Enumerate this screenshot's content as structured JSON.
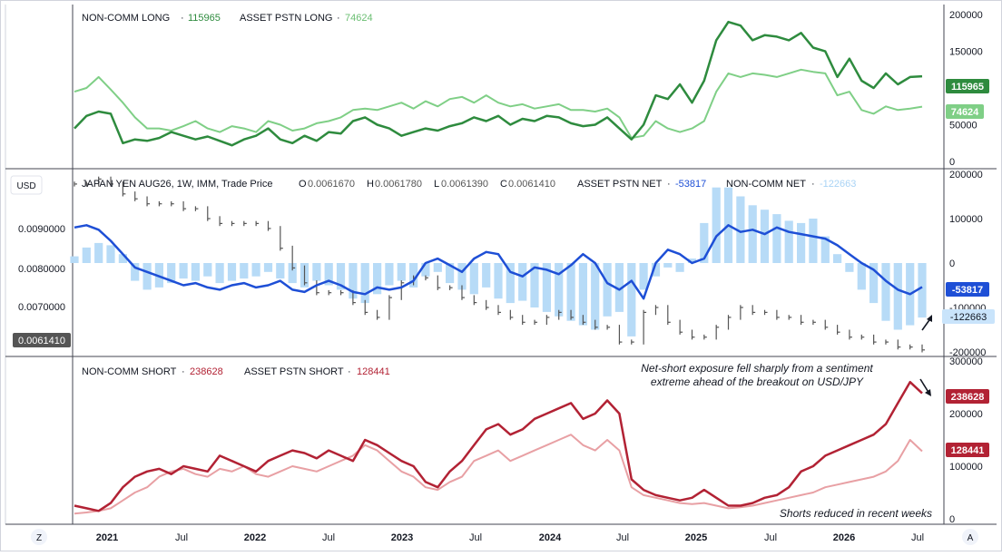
{
  "top_pane": {
    "legend": [
      {
        "label": "NON-COMM LONG",
        "dot": "·",
        "value": "115965",
        "color": "#2e8b3e"
      },
      {
        "label": "ASSET PSTN LONG",
        "dot": "·",
        "value": "74624",
        "color": "#7fcf86"
      }
    ],
    "axis_labels": [
      "200000",
      "150000",
      "100000",
      "50000",
      "0"
    ],
    "badges": [
      {
        "text": "115965",
        "bg": "#2e8b3e",
        "fg": "#ffffff"
      },
      {
        "text": "74624",
        "bg": "#7fcf86",
        "fg": "#ffffff"
      }
    ]
  },
  "mid_pane": {
    "currency_button": "USD",
    "instrument": "JAPAN YEN AUG26, 1W, IMM, Trade Price",
    "ohlc": {
      "o_label": "O",
      "o": "0.0061670",
      "h_label": "H",
      "h": "0.0061780",
      "l_label": "L",
      "l": "0.0061390",
      "c_label": "C",
      "c": "0.0061410"
    },
    "net_legend": [
      {
        "label": "ASSET PSTN NET",
        "dot": "·",
        "value": "-53817",
        "color": "#1e4fd6"
      },
      {
        "label": "NON-COMM NET",
        "dot": "·",
        "value": "-122663",
        "color": "#b7dbf7"
      }
    ],
    "left_axis_labels": [
      "0.0090000",
      "0.0080000",
      "0.0070000"
    ],
    "left_price_badge": "0.0061410",
    "axis_labels": [
      "200000",
      "100000",
      "0",
      "-100000",
      "-200000"
    ],
    "badges": [
      {
        "text": "-53817",
        "bg": "#1e4fd6",
        "fg": "#ffffff"
      },
      {
        "text": "-122663",
        "bg": "#c9e4fb",
        "fg": "#131722"
      }
    ]
  },
  "bottom_pane": {
    "legend": [
      {
        "label": "NON-COMM SHORT",
        "dot": "·",
        "value": "238628",
        "color": "#b22234"
      },
      {
        "label": "ASSET PSTN SHORT",
        "dot": "·",
        "value": "128441",
        "color": "#b22234"
      }
    ],
    "axis_labels": [
      "300000",
      "200000",
      "100000",
      "0"
    ],
    "badges": [
      {
        "text": "238628",
        "bg": "#b22234",
        "fg": "#ffffff"
      },
      {
        "text": "128441",
        "bg": "#b22234",
        "fg": "#ffffff"
      }
    ],
    "annotation_top": [
      "Net-short exposure fell sharply from a sentiment",
      "extreme ahead of the breakout on USD/JPY"
    ],
    "annotation_bottom": "Shorts reduced in recent weeks"
  },
  "time_axis": {
    "labels": [
      "2021",
      "Jul",
      "2022",
      "Jul",
      "2023",
      "Jul",
      "2024",
      "Jul",
      "2025",
      "Jul",
      "2026",
      "Jul"
    ],
    "bold": [
      true,
      false,
      true,
      false,
      true,
      false,
      true,
      false,
      true,
      false,
      true,
      false
    ],
    "left_button": "Z",
    "right_button": "A"
  },
  "colors": {
    "noncomm_long": "#2e8b3e",
    "asset_long": "#7fcf86",
    "asset_net": "#1e4fd6",
    "noncomm_net": "#b7dbf7",
    "noncomm_short": "#b22234",
    "asset_short": "#e8a0a4",
    "price": "#555555"
  },
  "chart_data": [
    {
      "type": "line",
      "ylim": [
        0,
        210000
      ],
      "x": [
        "2020-09",
        "2020-10",
        "2020-11",
        "2020-12",
        "2021-01",
        "2021-02",
        "2021-03",
        "2021-04",
        "2021-05",
        "2021-06",
        "2021-07",
        "2021-08",
        "2021-09",
        "2021-10",
        "2021-11",
        "2021-12",
        "2022-01",
        "2022-02",
        "2022-03",
        "2022-04",
        "2022-05",
        "2022-06",
        "2022-07",
        "2022-08",
        "2022-09",
        "2022-10",
        "2022-11",
        "2022-12",
        "2023-01",
        "2023-02",
        "2023-03",
        "2023-04",
        "2023-05",
        "2023-06",
        "2023-07",
        "2023-08",
        "2023-09",
        "2023-10",
        "2023-11",
        "2023-12",
        "2024-01",
        "2024-02",
        "2024-03",
        "2024-04",
        "2024-05",
        "2024-06",
        "2024-07",
        "2024-08",
        "2024-09",
        "2024-10",
        "2024-11",
        "2024-12",
        "2025-01",
        "2025-02",
        "2025-03",
        "2025-04",
        "2025-05",
        "2025-06",
        "2025-07",
        "2025-08",
        "2025-09",
        "2025-10",
        "2025-11",
        "2025-12",
        "2026-01",
        "2026-02",
        "2026-03",
        "2026-04",
        "2026-05",
        "2026-06",
        "2026-07"
      ],
      "series": [
        {
          "name": "NON-COMM LONG",
          "values": [
            45000,
            62000,
            68000,
            65000,
            25000,
            30000,
            28000,
            32000,
            40000,
            35000,
            30000,
            34000,
            28000,
            22000,
            30000,
            35000,
            45000,
            30000,
            25000,
            35000,
            28000,
            40000,
            38000,
            55000,
            60000,
            50000,
            45000,
            35000,
            40000,
            45000,
            42000,
            48000,
            52000,
            60000,
            55000,
            62000,
            50000,
            58000,
            55000,
            62000,
            60000,
            52000,
            48000,
            50000,
            60000,
            45000,
            30000,
            50000,
            90000,
            85000,
            105000,
            80000,
            110000,
            165000,
            190000,
            185000,
            165000,
            172000,
            170000,
            165000,
            175000,
            155000,
            150000,
            115000,
            140000,
            110000,
            100000,
            120000,
            105000,
            115000,
            115965
          ]
        },
        {
          "name": "ASSET PSTN LONG",
          "values": [
            95000,
            100000,
            115000,
            98000,
            80000,
            60000,
            45000,
            45000,
            42000,
            48000,
            55000,
            45000,
            40000,
            48000,
            45000,
            40000,
            55000,
            50000,
            42000,
            45000,
            52000,
            55000,
            60000,
            70000,
            72000,
            70000,
            75000,
            80000,
            72000,
            82000,
            75000,
            85000,
            88000,
            80000,
            90000,
            80000,
            75000,
            78000,
            72000,
            75000,
            78000,
            70000,
            70000,
            68000,
            72000,
            60000,
            32000,
            35000,
            55000,
            45000,
            40000,
            45000,
            55000,
            95000,
            120000,
            115000,
            120000,
            118000,
            115000,
            120000,
            125000,
            122000,
            120000,
            90000,
            95000,
            70000,
            65000,
            75000,
            70000,
            72000,
            74624
          ]
        }
      ]
    },
    {
      "type": "bar",
      "ylim": [
        -200000,
        200000
      ],
      "x": [
        "2020-09",
        "2020-10",
        "2020-11",
        "2020-12",
        "2021-01",
        "2021-02",
        "2021-03",
        "2021-04",
        "2021-05",
        "2021-06",
        "2021-07",
        "2021-08",
        "2021-09",
        "2021-10",
        "2021-11",
        "2021-12",
        "2022-01",
        "2022-02",
        "2022-03",
        "2022-04",
        "2022-05",
        "2022-06",
        "2022-07",
        "2022-08",
        "2022-09",
        "2022-10",
        "2022-11",
        "2022-12",
        "2023-01",
        "2023-02",
        "2023-03",
        "2023-04",
        "2023-05",
        "2023-06",
        "2023-07",
        "2023-08",
        "2023-09",
        "2023-10",
        "2023-11",
        "2023-12",
        "2024-01",
        "2024-02",
        "2024-03",
        "2024-04",
        "2024-05",
        "2024-06",
        "2024-07",
        "2024-08",
        "2024-09",
        "2024-10",
        "2024-11",
        "2024-12",
        "2025-01",
        "2025-02",
        "2025-03",
        "2025-04",
        "2025-05",
        "2025-06",
        "2025-07",
        "2025-08",
        "2025-09",
        "2025-10",
        "2025-11",
        "2025-12",
        "2026-01",
        "2026-02",
        "2026-03",
        "2026-04",
        "2026-05",
        "2026-06",
        "2026-07"
      ],
      "series": [
        {
          "name": "NON-COMM NET",
          "kind": "bar",
          "values": [
            15000,
            35000,
            45000,
            40000,
            20000,
            -40000,
            -60000,
            -55000,
            -45000,
            -35000,
            -40000,
            -30000,
            -45000,
            -40000,
            -35000,
            -30000,
            -20000,
            -35000,
            -45000,
            -55000,
            -40000,
            -50000,
            -60000,
            -80000,
            -90000,
            -70000,
            -50000,
            -40000,
            -55000,
            -30000,
            -20000,
            -45000,
            -60000,
            -70000,
            -55000,
            -80000,
            -90000,
            -85000,
            -100000,
            -110000,
            -120000,
            -130000,
            -140000,
            -150000,
            -120000,
            -110000,
            -165000,
            -60000,
            -30000,
            -10000,
            -20000,
            10000,
            90000,
            170000,
            170000,
            150000,
            130000,
            120000,
            110000,
            95000,
            90000,
            100000,
            60000,
            20000,
            -20000,
            -60000,
            -90000,
            -130000,
            -150000,
            -140000,
            -122663
          ]
        },
        {
          "name": "ASSET PSTN NET",
          "kind": "line",
          "values": [
            80000,
            85000,
            75000,
            50000,
            20000,
            -10000,
            -20000,
            -30000,
            -40000,
            -50000,
            -45000,
            -55000,
            -60000,
            -50000,
            -45000,
            -55000,
            -50000,
            -40000,
            -60000,
            -65000,
            -50000,
            -40000,
            -50000,
            -65000,
            -70000,
            -55000,
            -60000,
            -55000,
            -40000,
            0,
            10000,
            -5000,
            -20000,
            10000,
            25000,
            20000,
            -20000,
            -30000,
            -10000,
            -15000,
            -25000,
            -5000,
            20000,
            0,
            -45000,
            -60000,
            -40000,
            -80000,
            0,
            30000,
            20000,
            0,
            10000,
            60000,
            85000,
            70000,
            75000,
            65000,
            80000,
            70000,
            65000,
            60000,
            55000,
            40000,
            20000,
            0,
            -15000,
            -40000,
            -60000,
            -70000,
            -53817
          ]
        },
        {
          "name": "JAPAN YEN AUG26, 1W, IMM, Trade Price",
          "kind": "price",
          "unit": "USD",
          "ylim": [
            0.0061,
            0.0097
          ],
          "values": [
            0.0095,
            0.0095,
            0.0096,
            0.0095,
            0.0093,
            0.0092,
            0.0091,
            0.0091,
            0.0091,
            0.009,
            0.009,
            0.0088,
            0.0087,
            0.0087,
            0.0087,
            0.0087,
            0.0086,
            0.0082,
            0.0078,
            0.0075,
            0.0073,
            0.0073,
            0.0073,
            0.0071,
            0.0069,
            0.0068,
            0.0072,
            0.0075,
            0.0076,
            0.0076,
            0.0074,
            0.0074,
            0.0072,
            0.0071,
            0.007,
            0.0069,
            0.0068,
            0.0067,
            0.0067,
            0.0068,
            0.0069,
            0.0068,
            0.0067,
            0.0066,
            0.0066,
            0.0063,
            0.0063,
            0.0069,
            0.007,
            0.0067,
            0.0065,
            0.0064,
            0.0064,
            0.0066,
            0.0068,
            0.007,
            0.0069,
            0.0069,
            0.0068,
            0.0068,
            0.0067,
            0.0067,
            0.0066,
            0.0065,
            0.0064,
            0.0064,
            0.0063,
            0.0063,
            0.0062,
            0.0062,
            0.006141
          ]
        }
      ]
    },
    {
      "type": "line",
      "ylim": [
        0,
        300000
      ],
      "x": [
        "2020-09",
        "2020-10",
        "2020-11",
        "2020-12",
        "2021-01",
        "2021-02",
        "2021-03",
        "2021-04",
        "2021-05",
        "2021-06",
        "2021-07",
        "2021-08",
        "2021-09",
        "2021-10",
        "2021-11",
        "2021-12",
        "2022-01",
        "2022-02",
        "2022-03",
        "2022-04",
        "2022-05",
        "2022-06",
        "2022-07",
        "2022-08",
        "2022-09",
        "2022-10",
        "2022-11",
        "2022-12",
        "2023-01",
        "2023-02",
        "2023-03",
        "2023-04",
        "2023-05",
        "2023-06",
        "2023-07",
        "2023-08",
        "2023-09",
        "2023-10",
        "2023-11",
        "2023-12",
        "2024-01",
        "2024-02",
        "2024-03",
        "2024-04",
        "2024-05",
        "2024-06",
        "2024-07",
        "2024-08",
        "2024-09",
        "2024-10",
        "2024-11",
        "2024-12",
        "2025-01",
        "2025-02",
        "2025-03",
        "2025-04",
        "2025-05",
        "2025-06",
        "2025-07",
        "2025-08",
        "2025-09",
        "2025-10",
        "2025-11",
        "2025-12",
        "2026-01",
        "2026-02",
        "2026-03",
        "2026-04",
        "2026-05",
        "2026-06",
        "2026-07"
      ],
      "series": [
        {
          "name": "NON-COMM SHORT",
          "values": [
            25000,
            20000,
            15000,
            30000,
            60000,
            80000,
            90000,
            95000,
            85000,
            100000,
            95000,
            90000,
            120000,
            110000,
            100000,
            90000,
            110000,
            120000,
            130000,
            125000,
            115000,
            130000,
            120000,
            110000,
            150000,
            140000,
            125000,
            110000,
            100000,
            70000,
            60000,
            90000,
            110000,
            140000,
            170000,
            180000,
            160000,
            170000,
            190000,
            200000,
            210000,
            220000,
            190000,
            200000,
            225000,
            200000,
            75000,
            55000,
            45000,
            40000,
            35000,
            40000,
            55000,
            40000,
            25000,
            25000,
            30000,
            40000,
            45000,
            60000,
            90000,
            100000,
            120000,
            130000,
            140000,
            150000,
            160000,
            180000,
            220000,
            260000,
            238628
          ]
        },
        {
          "name": "ASSET PSTN SHORT",
          "values": [
            10000,
            12000,
            15000,
            20000,
            35000,
            50000,
            60000,
            80000,
            90000,
            95000,
            85000,
            80000,
            95000,
            90000,
            100000,
            85000,
            80000,
            90000,
            100000,
            95000,
            90000,
            100000,
            110000,
            120000,
            140000,
            130000,
            110000,
            90000,
            80000,
            60000,
            55000,
            70000,
            80000,
            110000,
            120000,
            130000,
            110000,
            120000,
            130000,
            140000,
            150000,
            160000,
            140000,
            130000,
            150000,
            130000,
            60000,
            45000,
            40000,
            35000,
            30000,
            28000,
            30000,
            25000,
            20000,
            22000,
            25000,
            30000,
            35000,
            40000,
            45000,
            50000,
            60000,
            65000,
            70000,
            75000,
            80000,
            90000,
            110000,
            150000,
            128441
          ]
        }
      ]
    }
  ]
}
